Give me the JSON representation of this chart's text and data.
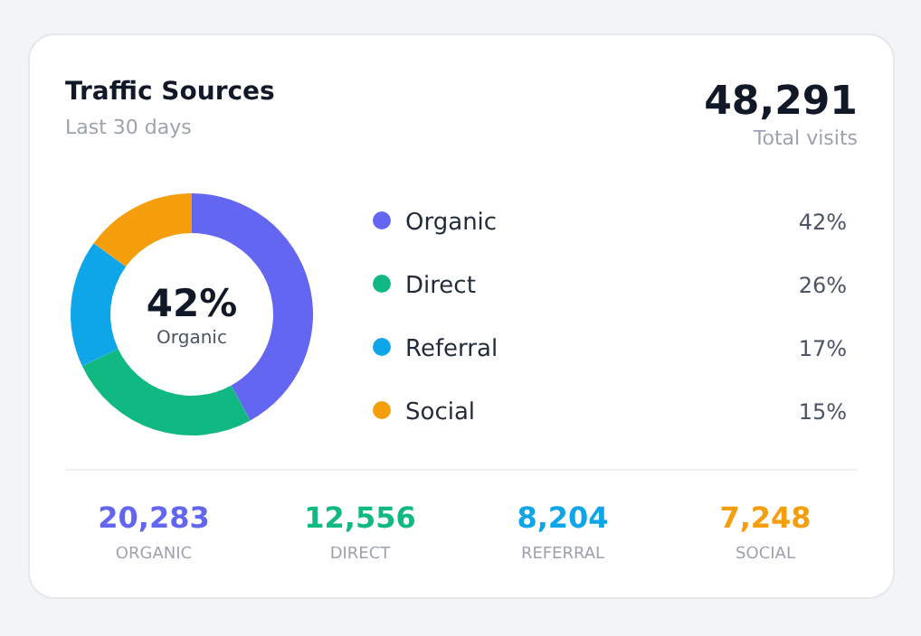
{
  "chart_data": {
    "type": "donut",
    "title": "Traffic Sources",
    "subtitle": "Last 30 days",
    "categories": [
      "Organic",
      "Direct",
      "Referral",
      "Social"
    ],
    "values": [
      42,
      26,
      17,
      15
    ],
    "value_labels": [
      "42%",
      "26%",
      "17%",
      "15%"
    ],
    "colors": [
      "#6366f1",
      "#10b981",
      "#0ea5e9",
      "#f59e0b"
    ],
    "legend": "right",
    "annotations": [
      "48,291",
      "Total visits",
      "20,283",
      "12,556",
      "8,204",
      "7,248",
      "ORGANIC",
      "DIRECT",
      "REFERRAL",
      "SOCIAL"
    ]
  }
}
